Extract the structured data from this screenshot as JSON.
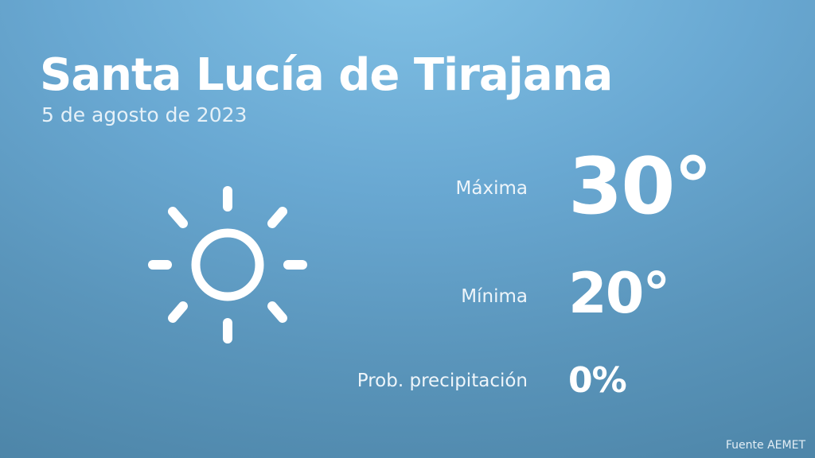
{
  "location": "Santa Lucía de Tirajana",
  "date": "5 de agosto de 2023",
  "icon": "sun-icon",
  "max": {
    "label": "Máxima",
    "value": "30°"
  },
  "min": {
    "label": "Mínima",
    "value": "20°"
  },
  "precip": {
    "label": "Prob. precipitación",
    "value": "0%"
  },
  "source": "Fuente AEMET",
  "colors": {
    "background_top": "#82c2e6",
    "background_bottom": "#4d85a8",
    "text": "#ffffff"
  }
}
